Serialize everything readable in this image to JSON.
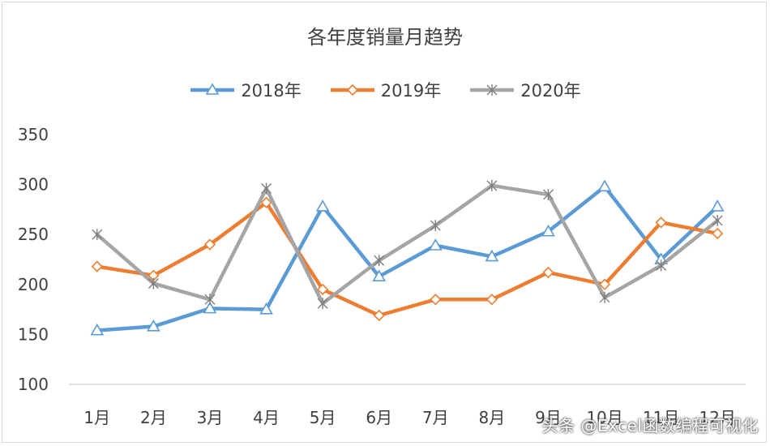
{
  "chart_data": {
    "type": "line",
    "title": "各年度销量月趋势",
    "categories": [
      "1月",
      "2月",
      "3月",
      "4月",
      "5月",
      "6月",
      "7月",
      "8月",
      "9月",
      "10月",
      "11月",
      "12月"
    ],
    "series": [
      {
        "name": "2018年",
        "color": "#5b9bd5",
        "marker": "triangle",
        "values": [
          154,
          158,
          176,
          175,
          278,
          208,
          239,
          228,
          253,
          298,
          225,
          278
        ]
      },
      {
        "name": "2019年",
        "color": "#ed7d31",
        "marker": "diamond",
        "values": [
          218,
          209,
          240,
          282,
          195,
          169,
          185,
          185,
          212,
          200,
          262,
          251
        ]
      },
      {
        "name": "2020年",
        "color": "#a5a5a5",
        "marker": "x",
        "values": [
          250,
          201,
          185,
          296,
          181,
          224,
          259,
          299,
          290,
          187,
          219,
          264
        ]
      }
    ],
    "ylim": [
      100,
      350
    ],
    "yticks": [
      100,
      150,
      200,
      250,
      300,
      350
    ],
    "legend_position": "top",
    "grid": false
  },
  "watermark": "头条 @Excel函数编程可视化"
}
